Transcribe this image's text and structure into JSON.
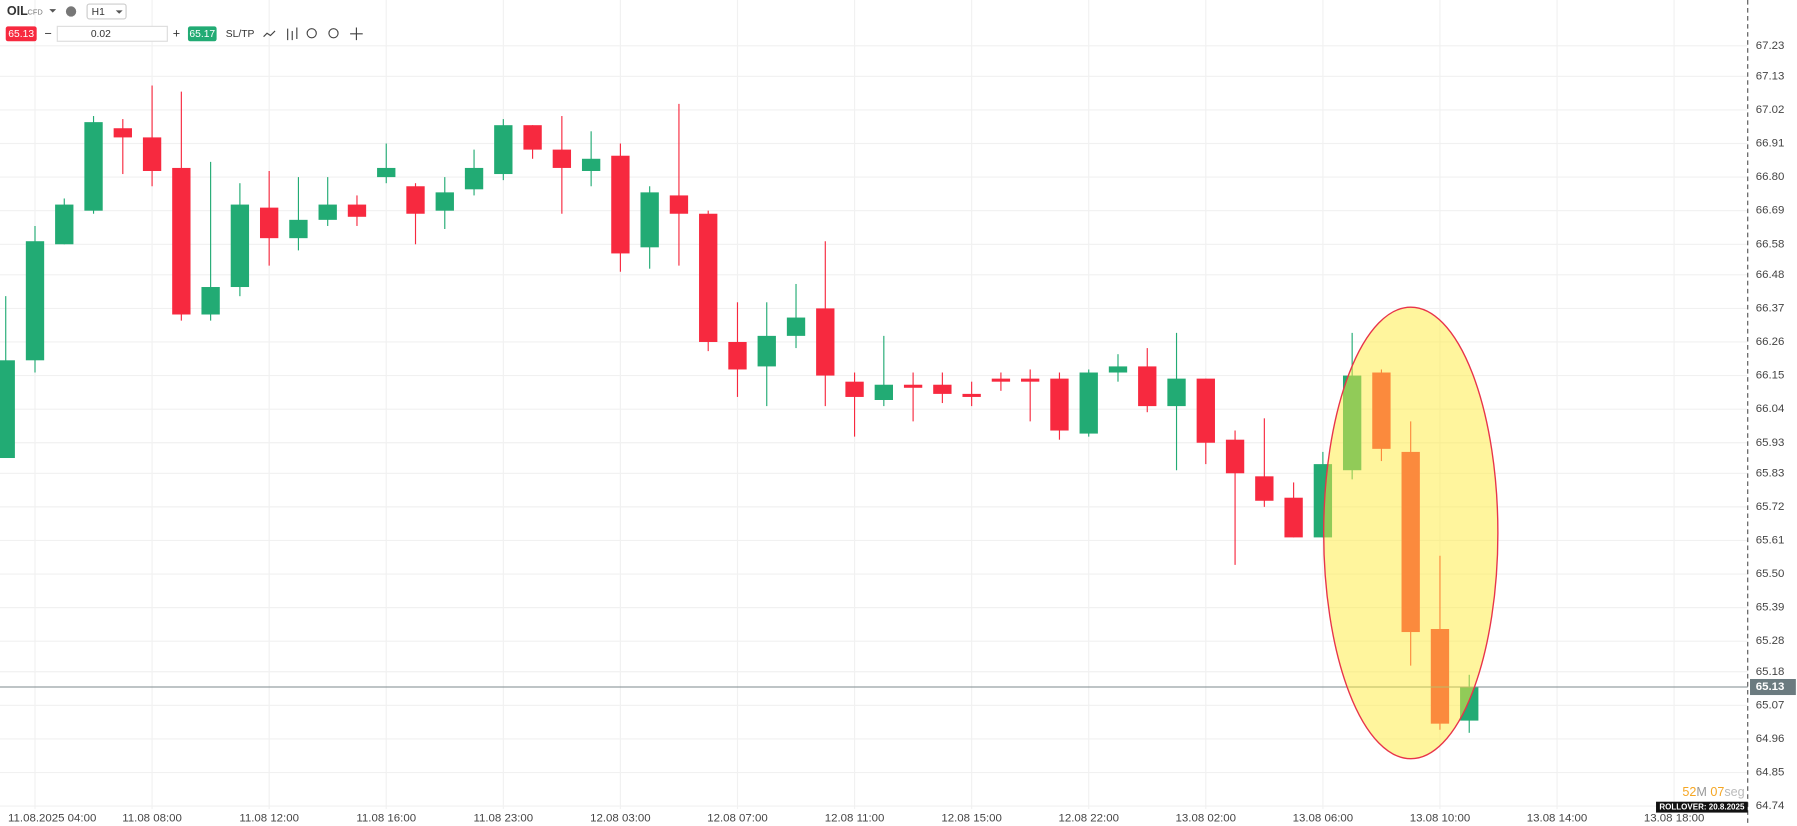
{
  "toolbar": {
    "symbol": "OIL",
    "instrument_type": "CFD",
    "timeframe": "H1",
    "sell_price": "65.13",
    "lot": "0.02",
    "buy_price": "65.17",
    "sltp": "SL/TP"
  },
  "countdown": {
    "minutes": "52",
    "minutes_unit": "M",
    "seconds": "07",
    "seconds_unit": "seg"
  },
  "rollover": "ROLLOVER: 20.8.2025",
  "chart_data": {
    "type": "candlestick",
    "categories": [
      null,
      "11.08.2025 04:00",
      null,
      null,
      null,
      "11.08 08:00",
      null,
      null,
      null,
      "11.08 12:00",
      null,
      null,
      null,
      "11.08 16:00",
      null,
      null,
      null,
      "11.08 23:00",
      null,
      null,
      null,
      "12.08 03:00",
      null,
      null,
      null,
      "12.08 07:00",
      null,
      null,
      null,
      "12.08 11:00",
      null,
      null,
      null,
      "12.08 15:00",
      null,
      null,
      null,
      "12.08 22:00",
      null,
      null,
      null,
      "13.08 02:00",
      null,
      null,
      null,
      "13.08 06:00",
      null,
      null,
      null,
      "13.08 10:00",
      null,
      null,
      null,
      "13.08 14:00",
      null,
      null,
      null,
      "13.08 18:00"
    ],
    "open": [
      65.88,
      66.2,
      66.58,
      66.69,
      66.96,
      66.93,
      66.83,
      66.35,
      66.44,
      66.7,
      66.6,
      66.66,
      66.71,
      66.8,
      66.77,
      66.69,
      66.76,
      66.81,
      66.97,
      66.89,
      66.82,
      66.87,
      66.57,
      66.74,
      66.68,
      66.26,
      66.18,
      66.28,
      66.37,
      66.13,
      66.07,
      66.12,
      66.12,
      66.09,
      66.14,
      66.14,
      66.14,
      65.96,
      66.16,
      66.18,
      66.05,
      66.14,
      65.94,
      65.82,
      65.75,
      65.62,
      65.84,
      66.16,
      65.9,
      65.32,
      65.02,
      null,
      null,
      null,
      null,
      null,
      null,
      null
    ],
    "high": [
      66.41,
      66.64,
      66.73,
      67.0,
      66.99,
      67.1,
      67.08,
      66.85,
      66.78,
      66.82,
      66.8,
      66.8,
      66.74,
      66.91,
      66.78,
      66.8,
      66.89,
      66.99,
      66.97,
      67.0,
      66.95,
      66.91,
      66.77,
      67.04,
      66.69,
      66.39,
      66.39,
      66.45,
      66.59,
      66.16,
      66.28,
      66.16,
      66.16,
      66.13,
      66.16,
      66.17,
      66.16,
      66.17,
      66.22,
      66.24,
      66.29,
      66.14,
      65.97,
      66.01,
      65.8,
      65.9,
      66.29,
      66.17,
      66.0,
      65.56,
      65.17,
      null,
      null,
      null,
      null,
      null,
      null,
      null
    ],
    "low": [
      65.88,
      66.16,
      66.58,
      66.68,
      66.81,
      66.77,
      66.33,
      66.33,
      66.41,
      66.51,
      66.56,
      66.64,
      66.64,
      66.78,
      66.58,
      66.63,
      66.74,
      66.79,
      66.86,
      66.68,
      66.77,
      66.49,
      66.5,
      66.51,
      66.23,
      66.08,
      66.05,
      66.24,
      66.05,
      65.95,
      66.05,
      66.0,
      66.06,
      66.05,
      66.1,
      66.0,
      65.94,
      65.95,
      66.13,
      66.03,
      65.84,
      65.86,
      65.53,
      65.72,
      65.62,
      65.62,
      65.81,
      65.87,
      65.2,
      64.99,
      64.98,
      null,
      null,
      null,
      null,
      null,
      null,
      null
    ],
    "close": [
      66.2,
      66.59,
      66.71,
      66.98,
      66.93,
      66.82,
      66.35,
      66.44,
      66.71,
      66.6,
      66.66,
      66.71,
      66.67,
      66.83,
      66.68,
      66.75,
      66.83,
      66.97,
      66.89,
      66.83,
      66.86,
      66.55,
      66.75,
      66.68,
      66.26,
      66.17,
      66.28,
      66.34,
      66.15,
      66.08,
      66.12,
      66.11,
      66.09,
      66.08,
      66.13,
      66.13,
      65.97,
      66.16,
      66.18,
      66.05,
      66.14,
      65.93,
      65.83,
      65.74,
      65.62,
      65.86,
      66.15,
      65.91,
      65.31,
      65.01,
      65.13,
      null,
      null,
      null,
      null,
      null,
      null,
      null
    ],
    "up_color": "#22ab74",
    "down_color": "#f7293f",
    "current_price": 65.13,
    "ylim": [
      64.73,
      67.38
    ],
    "yticks": [
      64.74,
      64.85,
      64.96,
      65.07,
      65.18,
      65.28,
      65.39,
      {
        "value": 65.5,
        "label": "65.50"
      },
      65.61,
      65.72,
      65.83,
      65.93,
      66.04,
      66.15,
      66.26,
      66.37,
      66.48,
      66.58,
      66.69,
      {
        "value": 66.8,
        "label": "66.80"
      },
      66.91,
      67.02,
      67.13,
      67.23
    ],
    "grid": true
  }
}
